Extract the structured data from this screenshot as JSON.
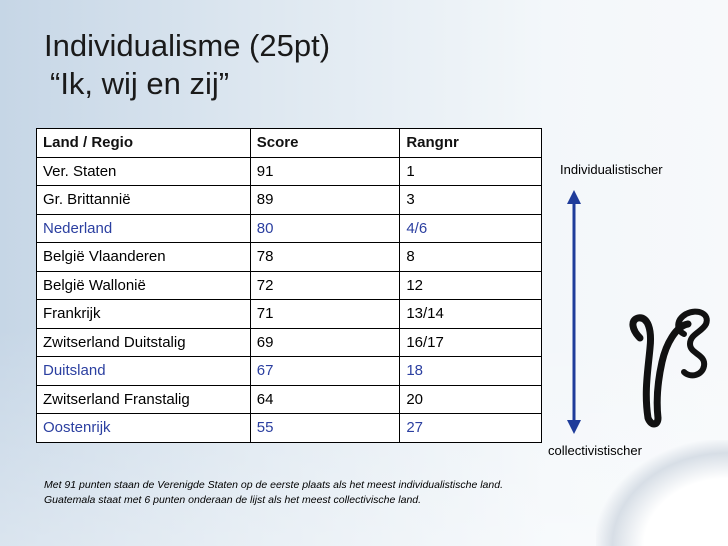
{
  "slide": {
    "title": "Individualisme (25pt)",
    "subtitle": "“Ik, wij en zij”"
  },
  "table": {
    "headers": [
      "Land / Regio",
      "Score",
      "Rangnr"
    ],
    "rows": [
      {
        "land": "Ver. Staten",
        "score": "91",
        "rang": "1",
        "highlight": false
      },
      {
        "land": "Gr. Brittannië",
        "score": "89",
        "rang": "3",
        "highlight": false
      },
      {
        "land": "Nederland",
        "score": "80",
        "rang": "4/6",
        "highlight": true
      },
      {
        "land": "België Vlaanderen",
        "score": "78",
        "rang": "8",
        "highlight": false
      },
      {
        "land": "België Wallonië",
        "score": "72",
        "rang": "12",
        "highlight": false
      },
      {
        "land": "Frankrijk",
        "score": "71",
        "rang": "13/14",
        "highlight": false
      },
      {
        "land": "Zwitserland Duitstalig",
        "score": "69",
        "rang": "16/17",
        "highlight": false
      },
      {
        "land": "Duitsland",
        "score": "67",
        "rang": "18",
        "highlight": true
      },
      {
        "land": "Zwitserland Franstalig",
        "score": "64",
        "rang": "20",
        "highlight": false
      },
      {
        "land": "Oostenrijk",
        "score": "55",
        "rang": "27",
        "highlight": true
      }
    ]
  },
  "scale": {
    "top_label": "Individualistischer",
    "bottom_label": "collectivistischer"
  },
  "footnote": {
    "line1": "Met 91 punten staan de Verenigde Staten op de eerste plaats als het meest individualistische land.",
    "line2": "Guatemala staat met 6 punten onderaan de lijst als het meest collectivische land."
  },
  "colors": {
    "highlight_text": "#2b3fa0",
    "arrow": "#1f3c9a"
  }
}
